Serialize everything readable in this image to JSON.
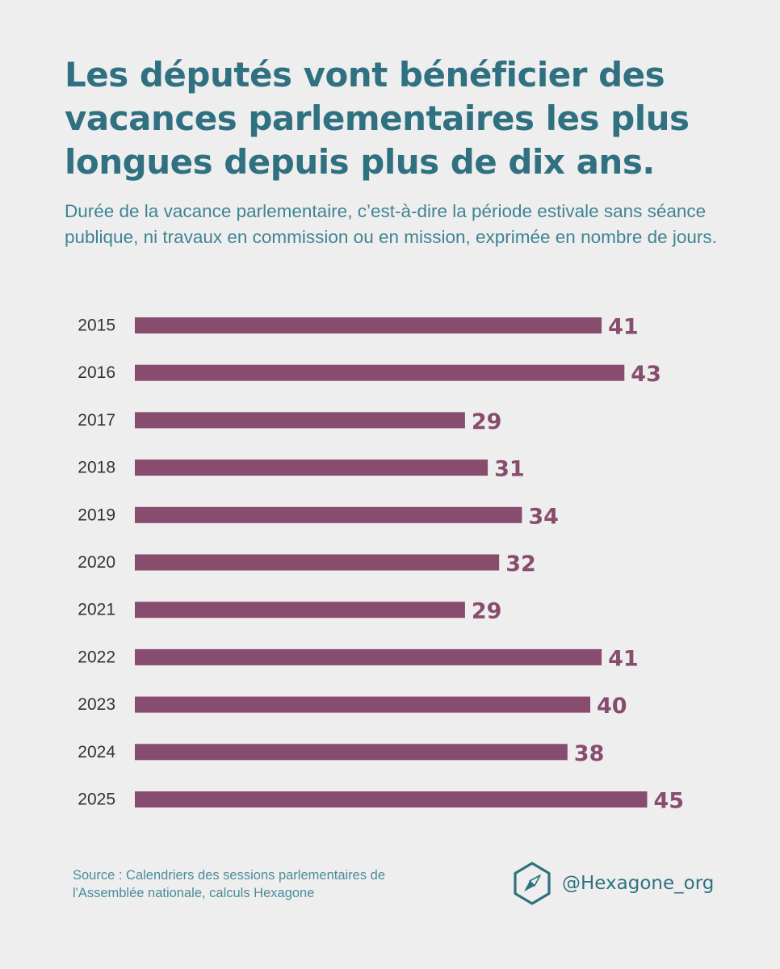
{
  "header": {
    "title": "Les députés vont bénéficier des vacances parlementaires les plus longues depuis plus de dix ans.",
    "subtitle": "Durée de la vacance parlementaire, c’est-à-dire la période estivale sans séance publique, ni travaux en commission ou en mission, exprimée en nombre de jours."
  },
  "chart_data": {
    "type": "bar",
    "orientation": "horizontal",
    "categories": [
      "2015",
      "2016",
      "2017",
      "2018",
      "2019",
      "2020",
      "2021",
      "2022",
      "2023",
      "2024",
      "2025"
    ],
    "values": [
      41,
      43,
      29,
      31,
      34,
      32,
      29,
      41,
      40,
      38,
      45
    ],
    "title": "Les députés vont bénéficier des vacances parlementaires les plus longues depuis plus de dix ans.",
    "xlabel": "",
    "ylabel": "",
    "xlim": [
      0,
      45
    ],
    "grid": false,
    "legend": "none",
    "bar_color": "#884d6e",
    "label_color": "#884d6e"
  },
  "footer": {
    "source": "Source : Calendriers des sessions parlementaires de l'Assemblée nationale, calculs Hexagone",
    "handle": "@Hexagone_org",
    "logo_icon": "hexagon-compass-icon"
  },
  "colors": {
    "background": "#efeeee",
    "title": "#2f7181",
    "subtitle": "#3e8494",
    "bar": "#884d6e"
  }
}
